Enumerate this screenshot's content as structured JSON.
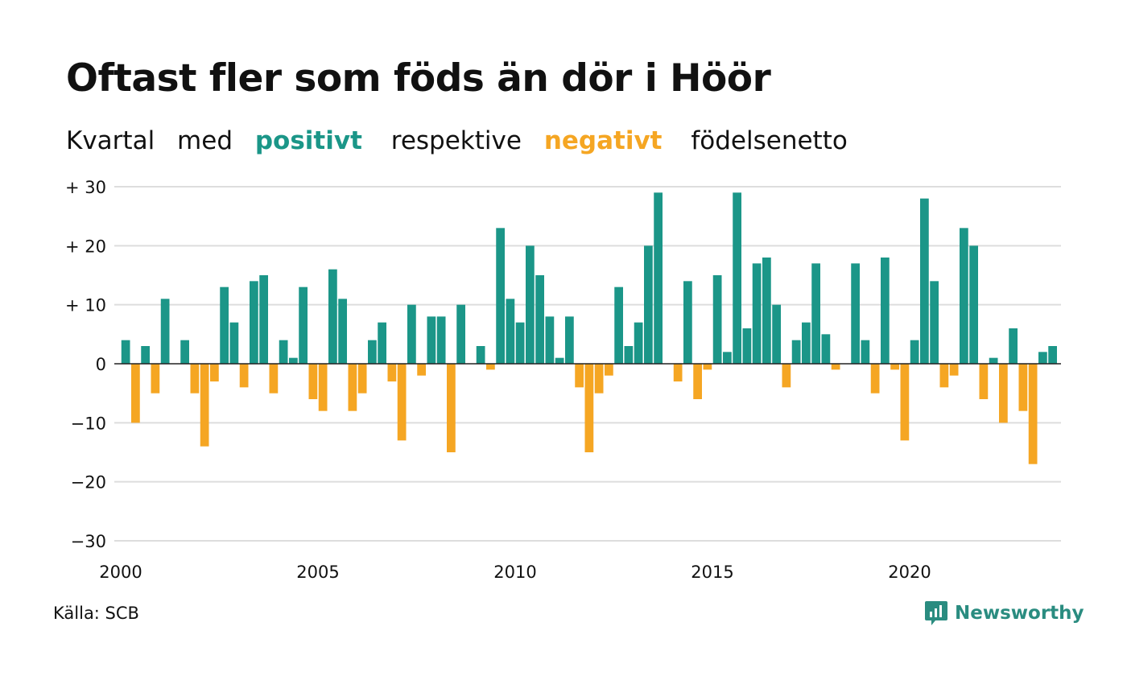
{
  "title": "Oftast fler som föds än dör i Höör",
  "subtitle": {
    "part1": "Kvartal",
    "part2": "med",
    "positive": "positivt",
    "part3": "respektive",
    "negative": "negativt",
    "part4": "födelsenetto"
  },
  "source": "Källa: SCB",
  "brand": "Newsworthy",
  "colors": {
    "positive": "#1b9688",
    "negative": "#f5a623",
    "grid": "#dddddd",
    "text": "#111111"
  },
  "chart_data": {
    "type": "bar",
    "x_start": 2000,
    "periods_per_year": 4,
    "values": [
      4,
      -10,
      3,
      -5,
      11,
      0,
      4,
      -5,
      -14,
      -3,
      13,
      7,
      -4,
      14,
      15,
      -5,
      4,
      1,
      13,
      -6,
      -8,
      16,
      11,
      -8,
      -5,
      4,
      7,
      -3,
      -13,
      10,
      -2,
      8,
      8,
      -15,
      10,
      0,
      3,
      -1,
      23,
      11,
      7,
      20,
      15,
      8,
      1,
      8,
      -4,
      -15,
      -5,
      -2,
      13,
      3,
      7,
      20,
      29,
      0,
      -3,
      14,
      -6,
      -1,
      15,
      2,
      29,
      6,
      17,
      18,
      10,
      -4,
      4,
      7,
      17,
      5,
      -1,
      0,
      17,
      4,
      -5,
      18,
      -1,
      -13,
      4,
      28,
      14,
      -4,
      -2,
      23,
      20,
      -6,
      1,
      -10,
      6,
      -8,
      -17,
      2,
      3
    ],
    "ylim": [
      -30,
      30
    ],
    "yticks": [
      30,
      20,
      10,
      0,
      -10,
      -20,
      -30
    ],
    "ytick_labels": [
      "+ 30",
      "+ 20",
      "+ 10",
      "0",
      "−10",
      "−20",
      "−30"
    ],
    "xticks": [
      "2000",
      "2005",
      "2010",
      "2015",
      "2020"
    ],
    "grid": true
  }
}
